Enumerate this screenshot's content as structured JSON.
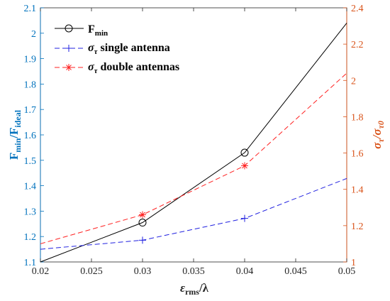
{
  "chart_data": {
    "type": "line",
    "x_ticks": [
      "0.02",
      "0.025",
      "0.03",
      "0.035",
      "0.04",
      "0.045",
      "0.05"
    ],
    "y_left_ticks": [
      "1.1",
      "1.2",
      "1.3",
      "1.4",
      "1.5",
      "1.6",
      "1.7",
      "1.8",
      "1.9",
      "2",
      "2.1"
    ],
    "y_right_ticks": [
      "1",
      "1.2",
      "1.4",
      "1.6",
      "1.8",
      "2",
      "2.2",
      "2.4"
    ],
    "xlim": [
      0.02,
      0.05
    ],
    "ylim_left": [
      1.1,
      2.1
    ],
    "ylim_right": [
      1.0,
      2.4
    ],
    "grid": false,
    "legend_position": "top-left",
    "colors": {
      "left_axis": "#0072BD",
      "right_axis": "#D95319",
      "fmin": "#000000",
      "single": "#2020e0",
      "double": "#ff2020"
    },
    "xlabel": {
      "main": "ε",
      "sub": "rms",
      "tail": "/λ"
    },
    "ylabel_left": {
      "main1": "F",
      "sub1": "min",
      "mid": "/F",
      "sub2": "ideal"
    },
    "ylabel_right": {
      "main1": "σ",
      "sub1": "τ",
      "mid": "/σ",
      "sub2": "τ0"
    },
    "series": [
      {
        "name": "F_min",
        "legend": {
          "main": "F",
          "sub": "min",
          "tail": ""
        },
        "axis": "left",
        "x": [
          0.02,
          0.03,
          0.04,
          0.05
        ],
        "y": [
          1.1,
          1.255,
          1.53,
          2.04
        ],
        "marker_x": [
          0.03,
          0.04
        ]
      },
      {
        "name": "sigma single",
        "legend": {
          "main": "σ",
          "sub": "τ",
          "tail": " single antenna"
        },
        "axis": "right",
        "x": [
          0.02,
          0.03,
          0.04,
          0.05
        ],
        "y": [
          1.07,
          1.12,
          1.24,
          1.46
        ],
        "marker_x": [
          0.03,
          0.04
        ]
      },
      {
        "name": "sigma double",
        "legend": {
          "main": "σ",
          "sub": "τ",
          "tail": " double antennas"
        },
        "axis": "right",
        "x": [
          0.02,
          0.03,
          0.04,
          0.05
        ],
        "y": [
          1.1,
          1.26,
          1.53,
          2.04
        ],
        "marker_x": [
          0.03,
          0.04
        ]
      }
    ]
  }
}
